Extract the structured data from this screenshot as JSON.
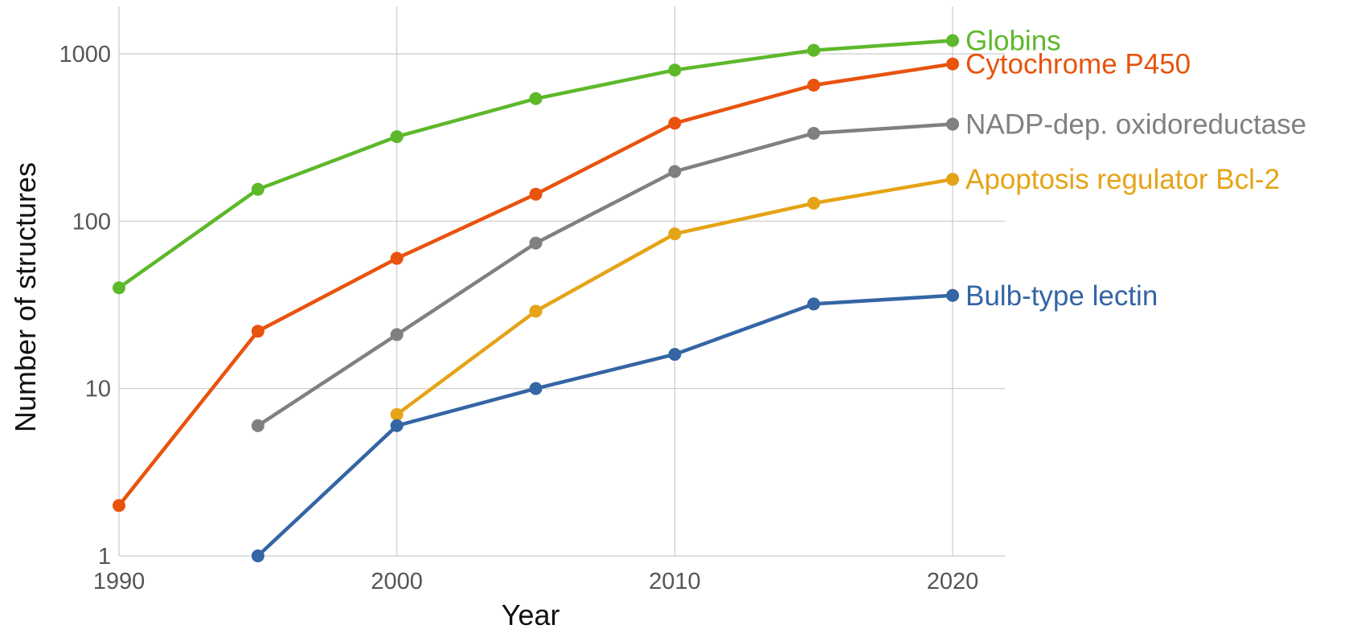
{
  "chart_data": {
    "type": "line",
    "title": "",
    "xlabel": "Year",
    "ylabel": "Number of structures",
    "yscale": "log",
    "xlim": [
      1990,
      2022
    ],
    "ylim": [
      1,
      2000
    ],
    "x_ticks": [
      1990,
      2000,
      2010,
      2020
    ],
    "y_ticks": [
      1,
      10,
      100,
      1000
    ],
    "grid": true,
    "legend": "direct labels at line ends",
    "series": [
      {
        "name": "Globins",
        "color": "#5db82a",
        "points": [
          [
            1990,
            40
          ],
          [
            1995,
            155
          ],
          [
            2000,
            320
          ],
          [
            2005,
            540
          ],
          [
            2010,
            800
          ],
          [
            2015,
            1050
          ],
          [
            2020,
            1200
          ]
        ]
      },
      {
        "name": "Cytochrome P450",
        "color": "#e8530e",
        "points": [
          [
            1990,
            2
          ],
          [
            1995,
            22
          ],
          [
            2000,
            60
          ],
          [
            2005,
            145
          ],
          [
            2010,
            385
          ],
          [
            2015,
            650
          ],
          [
            2020,
            870
          ]
        ]
      },
      {
        "name": "NADP-dep. oxidoreductase",
        "color": "#808080",
        "points": [
          [
            1995,
            6
          ],
          [
            2000,
            21
          ],
          [
            2005,
            74
          ],
          [
            2010,
            198
          ],
          [
            2015,
            335
          ],
          [
            2020,
            380
          ]
        ]
      },
      {
        "name": "Apoptosis regulator Bcl-2",
        "color": "#e5a317",
        "points": [
          [
            2000,
            7
          ],
          [
            2005,
            29
          ],
          [
            2010,
            84
          ],
          [
            2015,
            128
          ],
          [
            2020,
            178
          ]
        ]
      },
      {
        "name": "Bulb-type lectin",
        "color": "#3465a4",
        "points": [
          [
            1995,
            1
          ],
          [
            2000,
            6
          ],
          [
            2005,
            10
          ],
          [
            2010,
            16
          ],
          [
            2015,
            32
          ],
          [
            2020,
            36
          ]
        ]
      }
    ]
  }
}
